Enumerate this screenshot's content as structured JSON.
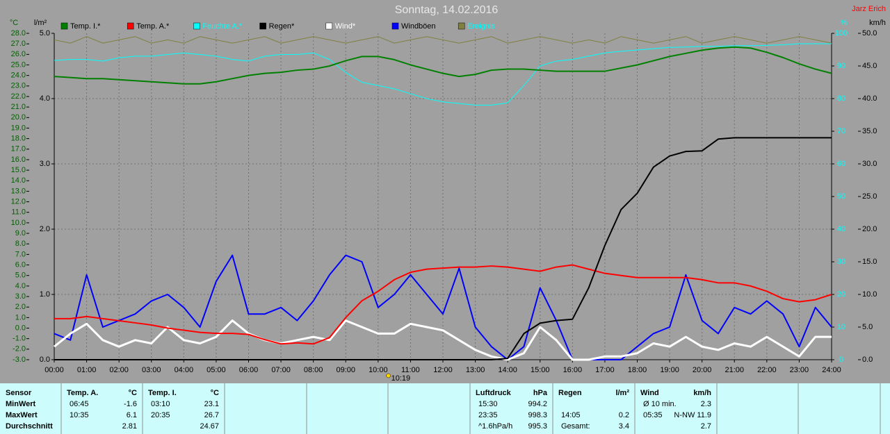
{
  "chart_data": {
    "type": "line",
    "title": "Sonntag, 14.02.2016",
    "author": "Jarz Erich",
    "grid": true,
    "x": [
      0,
      0.5,
      1,
      1.5,
      2,
      2.5,
      3,
      3.5,
      4,
      4.5,
      5,
      5.5,
      6,
      6.5,
      7,
      7.5,
      8,
      8.5,
      9,
      9.5,
      10,
      10.5,
      11,
      11.5,
      12,
      12.5,
      13,
      13.5,
      14,
      14.5,
      15,
      15.5,
      16,
      16.5,
      17,
      17.5,
      18,
      18.5,
      19,
      19.5,
      20,
      20.5,
      21,
      21.5,
      22,
      22.5,
      23,
      23.5,
      24
    ],
    "xlim": [
      0,
      24
    ],
    "xticks": [
      {
        "value": 0,
        "label": "00:00"
      },
      {
        "value": 1,
        "label": "01:00"
      },
      {
        "value": 2,
        "label": "02:00"
      },
      {
        "value": 3,
        "label": "03:00"
      },
      {
        "value": 4,
        "label": "04:00"
      },
      {
        "value": 5,
        "label": "05:00"
      },
      {
        "value": 6,
        "label": "06:00"
      },
      {
        "value": 7,
        "label": "07:00"
      },
      {
        "value": 8,
        "label": "08:00"
      },
      {
        "value": 9,
        "label": "09:00"
      },
      {
        "value": 10,
        "label": "10:00"
      },
      {
        "value": 11,
        "label": "11:00"
      },
      {
        "value": 12,
        "label": "12:00"
      },
      {
        "value": 13,
        "label": "13:00"
      },
      {
        "value": 14,
        "label": "14:00"
      },
      {
        "value": 15,
        "label": "15:00"
      },
      {
        "value": 16,
        "label": "16:00"
      },
      {
        "value": 17,
        "label": "17:00"
      },
      {
        "value": 18,
        "label": "18:00"
      },
      {
        "value": 19,
        "label": "19:00"
      },
      {
        "value": 20,
        "label": "20:00"
      },
      {
        "value": 21,
        "label": "21:00"
      },
      {
        "value": 22,
        "label": "22:00"
      },
      {
        "value": 23,
        "label": "23:00"
      },
      {
        "value": 24,
        "label": "24:00"
      }
    ],
    "y_label": "°C",
    "ylim": [
      -3,
      28
    ],
    "yticks": [
      {
        "value": -3,
        "label": "-3.0"
      },
      {
        "value": -2,
        "label": "-2.0"
      },
      {
        "value": -1,
        "label": "-1.0"
      },
      {
        "value": 0,
        "label": "0.0"
      },
      {
        "value": 1,
        "label": "1.0"
      },
      {
        "value": 2,
        "label": "2.0"
      },
      {
        "value": 3,
        "label": "3.0"
      },
      {
        "value": 4,
        "label": "4.0"
      },
      {
        "value": 5,
        "label": "5.0"
      },
      {
        "value": 6,
        "label": "6.0"
      },
      {
        "value": 7,
        "label": "7.0"
      },
      {
        "value": 8,
        "label": "8.0"
      },
      {
        "value": 9,
        "label": "9.0"
      },
      {
        "value": 10,
        "label": "10.0"
      },
      {
        "value": 11,
        "label": "11.0"
      },
      {
        "value": 12,
        "label": "12.0"
      },
      {
        "value": 13,
        "label": "13.0"
      },
      {
        "value": 14,
        "label": "14.0"
      },
      {
        "value": 15,
        "label": "15.0"
      },
      {
        "value": 16,
        "label": "16.0"
      },
      {
        "value": 17,
        "label": "17.0"
      },
      {
        "value": 18,
        "label": "18.0"
      },
      {
        "value": 19,
        "label": "19.0"
      },
      {
        "value": 20,
        "label": "20.0"
      },
      {
        "value": 21,
        "label": "21.0"
      },
      {
        "value": 22,
        "label": "22.0"
      },
      {
        "value": 23,
        "label": "23.0"
      },
      {
        "value": 24,
        "label": "24.0"
      },
      {
        "value": 25,
        "label": "25.0"
      },
      {
        "value": 26,
        "label": "26.0"
      },
      {
        "value": 27,
        "label": "27.0"
      },
      {
        "value": 28,
        "label": "28.0"
      }
    ],
    "y2_label": "l/m²",
    "y2lim": [
      0,
      5
    ],
    "y2ticks": [
      {
        "value": 0,
        "label": "0.0"
      },
      {
        "value": 1,
        "label": "1.0"
      },
      {
        "value": 2,
        "label": "2.0"
      },
      {
        "value": 3,
        "label": "3.0"
      },
      {
        "value": 4,
        "label": "4.0"
      },
      {
        "value": 5,
        "label": "5.0"
      }
    ],
    "y3_label": "%",
    "y3lim": [
      0,
      100
    ],
    "y3ticks": [
      0,
      10,
      20,
      30,
      40,
      50,
      60,
      70,
      80,
      90,
      100
    ],
    "y4_label": "km/h",
    "y4lim": [
      0,
      50
    ],
    "y4ticks": [
      {
        "value": 0,
        "label": "0.0"
      },
      {
        "value": 5,
        "label": "5.0"
      },
      {
        "value": 10,
        "label": "10.0"
      },
      {
        "value": 15,
        "label": "15.0"
      },
      {
        "value": 20,
        "label": "20.0"
      },
      {
        "value": 25,
        "label": "25.0"
      },
      {
        "value": 30,
        "label": "30.0"
      },
      {
        "value": 35,
        "label": "35.0"
      },
      {
        "value": 40,
        "label": "40.0"
      },
      {
        "value": 45,
        "label": "45.0"
      },
      {
        "value": 50,
        "label": "50.0"
      }
    ],
    "series": [
      {
        "name": "Temp. I.*",
        "color": "#008000",
        "legend_text_color": "#000000",
        "axis": "y",
        "values": [
          23.9,
          23.8,
          23.7,
          23.7,
          23.6,
          23.5,
          23.4,
          23.3,
          23.2,
          23.2,
          23.4,
          23.7,
          24.0,
          24.2,
          24.3,
          24.5,
          24.6,
          24.9,
          25.4,
          25.8,
          25.8,
          25.5,
          25.0,
          24.6,
          24.2,
          23.9,
          24.1,
          24.5,
          24.6,
          24.6,
          24.5,
          24.4,
          24.4,
          24.4,
          24.4,
          24.7,
          25.0,
          25.4,
          25.8,
          26.1,
          26.4,
          26.6,
          26.7,
          26.6,
          26.2,
          25.7,
          25.1,
          24.6,
          24.2
        ]
      },
      {
        "name": "Temp. A.*",
        "color": "#ff0000",
        "legend_text_color": "#000000",
        "axis": "y",
        "values": [
          0.9,
          0.9,
          1.1,
          0.9,
          0.7,
          0.5,
          0.3,
          0.0,
          -0.2,
          -0.4,
          -0.5,
          -0.5,
          -0.6,
          -1.1,
          -1.5,
          -1.4,
          -1.5,
          -0.9,
          1.0,
          2.6,
          3.5,
          4.6,
          5.3,
          5.6,
          5.7,
          5.8,
          5.8,
          5.9,
          5.8,
          5.6,
          5.4,
          5.8,
          6.0,
          5.6,
          5.2,
          5.0,
          4.8,
          4.8,
          4.8,
          4.8,
          4.6,
          4.3,
          4.3,
          4.0,
          3.5,
          2.8,
          2.5,
          2.7,
          3.2
        ]
      },
      {
        "name": "Feuchte A.*",
        "color": "#00ffff",
        "legend_text_color": "#00ffff",
        "axis": "y3",
        "values": [
          91.7,
          92,
          92,
          91.5,
          92.5,
          93,
          93,
          93.5,
          94,
          93.5,
          93,
          92,
          91.5,
          93,
          93.5,
          93.5,
          94,
          92,
          88,
          85,
          84,
          83,
          81.5,
          80,
          79,
          78.5,
          78,
          78,
          78.7,
          84,
          90,
          91.5,
          92,
          93,
          94,
          94.5,
          94.9,
          95.3,
          95.7,
          95.8,
          96,
          96,
          96.2,
          96.2,
          96.3,
          96.5,
          96.8,
          96.8,
          96.8
        ]
      },
      {
        "name": "Regen*",
        "color": "#000000",
        "legend_text_color": "#000000",
        "axis": "y2",
        "values": [
          0,
          0,
          0,
          0,
          0,
          0,
          0,
          0,
          0,
          0,
          0,
          0,
          0,
          0,
          0,
          0,
          0,
          0,
          0,
          0,
          0,
          0,
          0,
          0,
          0,
          0,
          0,
          0,
          0.02,
          0.4,
          0.56,
          0.6,
          0.62,
          1.1,
          1.75,
          2.3,
          2.55,
          2.95,
          3.12,
          3.19,
          3.2,
          3.38,
          3.4,
          3.4,
          3.4,
          3.4,
          3.4,
          3.4,
          3.4
        ]
      },
      {
        "name": "Wind*",
        "color": "#ffffff",
        "legend_text_color": "#ffffff",
        "axis": "y4",
        "values": [
          2,
          4,
          5.5,
          3,
          2,
          3,
          2.5,
          5,
          3,
          2.5,
          3.5,
          6,
          4,
          3,
          2.5,
          3,
          3.5,
          3,
          6,
          5,
          4,
          4,
          5.5,
          5,
          4.5,
          3,
          1.5,
          0.5,
          0,
          1,
          5,
          3,
          0,
          0,
          0.5,
          0.5,
          1,
          2.5,
          2,
          3.5,
          2,
          1.5,
          2.5,
          2,
          3.5,
          2,
          0.5,
          3.5,
          3.5
        ]
      },
      {
        "name": "Windböen",
        "color": "#0000ff",
        "legend_text_color": "#000000",
        "axis": "y4",
        "values": [
          4,
          3,
          13,
          5,
          6,
          7,
          9,
          10,
          8,
          5,
          12,
          16,
          7,
          7,
          8,
          6,
          9,
          13,
          16,
          15,
          8,
          10,
          13,
          10,
          7,
          14,
          5,
          2,
          0,
          2,
          11,
          6,
          0,
          0,
          0,
          0,
          2,
          4,
          5,
          13,
          6,
          4,
          8,
          7,
          9,
          7,
          2,
          8,
          5
        ]
      },
      {
        "name": "Ereignis",
        "color": "#808040",
        "legend_text_color": "#00ffff",
        "axis": "y3",
        "values": [
          98,
          97,
          99,
          97,
          98,
          99,
          97,
          98,
          97,
          99,
          98,
          97,
          98,
          99,
          97,
          98,
          99,
          98,
          97,
          98,
          99,
          97,
          98,
          99,
          98,
          97,
          98,
          99,
          97,
          98,
          99,
          98,
          97,
          98,
          97,
          99,
          98,
          97,
          98,
          99,
          97,
          98,
          99,
          98,
          97,
          98,
          99,
          98,
          97
        ]
      }
    ],
    "marker": "10:19"
  },
  "stats": {
    "label_header": "Sensor",
    "row_labels": [
      "MinWert",
      "MaxWert",
      "Durchschnitt"
    ],
    "panels": [
      {
        "title": "Temp. A.",
        "unit": "°C",
        "min": {
          "label": "06:45",
          "value": -1.6
        },
        "max": {
          "label": "10:35",
          "value": 6.1
        },
        "avg": {
          "value": 2.81
        }
      },
      {
        "title": "Temp. I.",
        "unit": "°C",
        "min": {
          "label": "03:10",
          "value": 23.1
        },
        "max": {
          "label": "20:35",
          "value": 26.7
        },
        "avg": {
          "value": 24.67
        }
      },
      {
        "title": "Luftdruck",
        "unit": "hPa",
        "min": {
          "label": "15:30",
          "value": 994.2
        },
        "max": {
          "label": "23:35",
          "value": 998.3
        },
        "avg": {
          "label": "^1.6hPa/h",
          "value": 995.3
        }
      },
      {
        "title": "Regen",
        "unit": "l/m²",
        "max": {
          "label": "14:05",
          "value": 0.2
        },
        "avg": {
          "label": "Gesamt:",
          "value": 3.4
        }
      },
      {
        "title": "Wind",
        "unit": "km/h",
        "min": {
          "label": "Ø 10 min.",
          "value": 2.3
        },
        "max": {
          "label": "05:35",
          "value": "N-NW 11.9"
        },
        "avg": {
          "value": 2.7
        }
      }
    ]
  }
}
